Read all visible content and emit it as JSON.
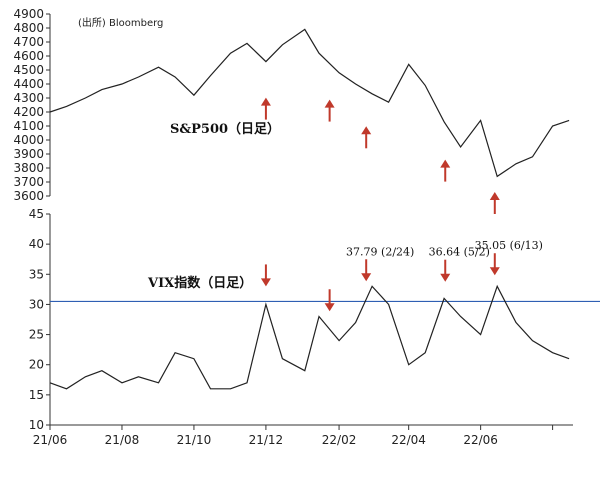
{
  "source_note": "(出所) Bloomberg",
  "chart_data": [
    {
      "type": "line",
      "title": "S&P500（日足）",
      "ylim": [
        3600,
        4900
      ],
      "yticks": [
        3600,
        3700,
        3800,
        3900,
        4000,
        4100,
        4200,
        4300,
        4400,
        4500,
        4600,
        4700,
        4800,
        4900
      ],
      "x": [
        "2021-06-01",
        "2021-06-15",
        "2021-07-01",
        "2021-07-15",
        "2021-08-01",
        "2021-08-15",
        "2021-09-01",
        "2021-09-15",
        "2021-10-01",
        "2021-10-15",
        "2021-11-01",
        "2021-11-15",
        "2021-12-01",
        "2021-12-15",
        "2022-01-03",
        "2022-01-15",
        "2022-02-01",
        "2022-02-15",
        "2022-03-01",
        "2022-03-15",
        "2022-04-01",
        "2022-04-15",
        "2022-05-01",
        "2022-05-15",
        "2022-06-01",
        "2022-06-15",
        "2022-07-01",
        "2022-07-15",
        "2022-08-01",
        "2022-08-15"
      ],
      "values": [
        4200,
        4240,
        4300,
        4360,
        4400,
        4450,
        4520,
        4450,
        4320,
        4460,
        4620,
        4690,
        4560,
        4680,
        4790,
        4620,
        4480,
        4400,
        4330,
        4270,
        4540,
        4390,
        4130,
        3950,
        4140,
        3740,
        3830,
        3880,
        4100,
        4140
      ],
      "annotations": [
        {
          "date": "2021-12-01",
          "label": ""
        },
        {
          "date": "2022-01-24",
          "label": ""
        },
        {
          "date": "2022-02-24",
          "label": ""
        },
        {
          "date": "2022-05-02",
          "label": ""
        },
        {
          "date": "2022-06-13",
          "label": ""
        }
      ]
    },
    {
      "type": "line",
      "title": "VIX指数（日足）",
      "ylim": [
        10,
        45
      ],
      "yticks": [
        10,
        15,
        20,
        25,
        30,
        35,
        40,
        45
      ],
      "reference_line": 30.5,
      "x": [
        "2021-06-01",
        "2021-06-15",
        "2021-07-01",
        "2021-07-15",
        "2021-08-01",
        "2021-08-15",
        "2021-09-01",
        "2021-09-15",
        "2021-10-01",
        "2021-10-15",
        "2021-11-01",
        "2021-11-15",
        "2021-12-01",
        "2021-12-15",
        "2022-01-03",
        "2022-01-15",
        "2022-02-01",
        "2022-02-15",
        "2022-03-01",
        "2022-03-15",
        "2022-04-01",
        "2022-04-15",
        "2022-05-01",
        "2022-05-15",
        "2022-06-01",
        "2022-06-15",
        "2022-07-01",
        "2022-07-15",
        "2022-08-01",
        "2022-08-15"
      ],
      "values": [
        17,
        16,
        18,
        19,
        17,
        18,
        17,
        22,
        21,
        16,
        16,
        17,
        30,
        21,
        19,
        28,
        24,
        27,
        33,
        30,
        20,
        22,
        31,
        28,
        25,
        33,
        27,
        24,
        22,
        21
      ],
      "annotations": [
        {
          "date": "2021-12-01",
          "label": ""
        },
        {
          "date": "2022-01-24",
          "label": ""
        },
        {
          "date": "2022-02-24",
          "label": "37.79 (2/24)"
        },
        {
          "date": "2022-05-02",
          "label": "36.64 (5/2)"
        },
        {
          "date": "2022-06-13",
          "label": "35.05 (6/13)"
        }
      ]
    }
  ],
  "x_axis": {
    "start": "2021-06-01",
    "end": "2022-08-31",
    "ticks": [
      {
        "date": "2021-06-01",
        "label": "21/06"
      },
      {
        "date": "2021-08-01",
        "label": "21/08"
      },
      {
        "date": "2021-10-01",
        "label": "21/10"
      },
      {
        "date": "2021-12-01",
        "label": "21/12"
      },
      {
        "date": "2022-02-01",
        "label": "22/02"
      },
      {
        "date": "2022-04-01",
        "label": "22/04"
      },
      {
        "date": "2022-06-01",
        "label": "22/06"
      },
      {
        "date": "2022-08-01",
        "label": ""
      }
    ]
  },
  "colors": {
    "series": "#222222",
    "arrow": "#c0392b",
    "reference_line": "#2f5fb3",
    "axis": "#333333"
  }
}
